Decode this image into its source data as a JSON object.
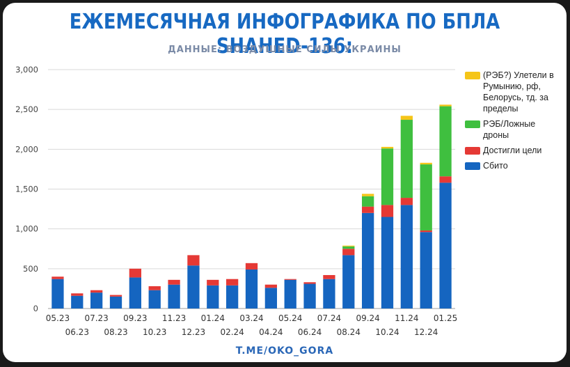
{
  "header": {
    "title": "ЕЖЕМЕСЯЧНАЯ ИНФОГРАФИКА ПО БПЛА SHAHED-136:",
    "subtitle": "ДАННЫЕ: ВОЗДУШНЫЕ СИЛЫ УКРАИНЫ"
  },
  "footer": {
    "link": "T.ME/OKO_GORA"
  },
  "colors": {
    "title": "#1769c2",
    "shot_down": "#1565c0",
    "hit_target": "#e53935",
    "ew_decoy": "#3fbf3f",
    "flew_away": "#f5c518"
  },
  "chart_data": {
    "type": "bar",
    "stacked": true,
    "categories": [
      "05.23",
      "06.23",
      "07.23",
      "08.23",
      "09.23",
      "10.23",
      "11.23",
      "12.23",
      "01.24",
      "02.24",
      "03.24",
      "04.24",
      "05.24",
      "06.24",
      "07.24",
      "08.24",
      "09.24",
      "10.24",
      "11.24",
      "12.24",
      "01.25"
    ],
    "series": [
      {
        "name": "Сбито",
        "color": "#1565c0",
        "values": [
          370,
          160,
          200,
          150,
          390,
          230,
          300,
          540,
          290,
          290,
          490,
          260,
          360,
          310,
          370,
          670,
          1200,
          1150,
          1300,
          960,
          1580
        ]
      },
      {
        "name": "Достигли цели",
        "color": "#e53935",
        "values": [
          30,
          30,
          30,
          20,
          110,
          50,
          60,
          130,
          70,
          80,
          80,
          40,
          10,
          20,
          50,
          80,
          80,
          150,
          90,
          20,
          80
        ]
      },
      {
        "name": "РЭБ/Ложные дроны",
        "color": "#3fbf3f",
        "values": [
          0,
          0,
          0,
          0,
          0,
          0,
          0,
          0,
          0,
          0,
          0,
          0,
          0,
          0,
          0,
          30,
          130,
          710,
          980,
          830,
          880
        ]
      },
      {
        "name": "(РЭБ?) Улетели в Румынию, рф, Белорусь, тд. за пределы",
        "color": "#f5c518",
        "values": [
          0,
          0,
          0,
          0,
          0,
          0,
          0,
          0,
          0,
          0,
          0,
          0,
          0,
          0,
          0,
          10,
          30,
          20,
          50,
          20,
          20
        ]
      }
    ],
    "ylim": [
      0,
      3000
    ],
    "yticks": [
      "0",
      "500",
      "1,000",
      "1,500",
      "2,000",
      "2,500",
      "3,000"
    ],
    "grid": true,
    "legend": "right"
  }
}
